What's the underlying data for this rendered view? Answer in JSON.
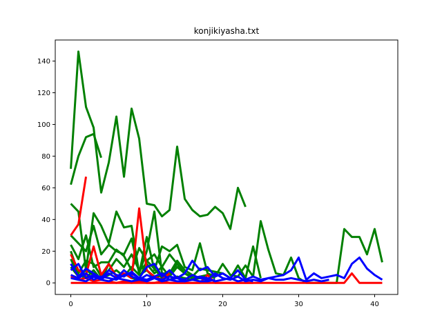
{
  "chart_data": {
    "type": "line",
    "title": "konjikiyasha.txt",
    "xlabel": "",
    "ylabel": "",
    "xlim": [
      -2.05,
      43.05
    ],
    "ylim": [
      -7.3,
      153.3
    ],
    "xticks": [
      0,
      10,
      20,
      30,
      40
    ],
    "yticks": [
      0,
      20,
      40,
      60,
      80,
      100,
      120,
      140
    ],
    "grid": false,
    "legend": false,
    "colors": {
      "green": "#008000",
      "red": "#ff0000",
      "blue": "#0000ff"
    },
    "series": [
      {
        "color": "green",
        "values": [
          72,
          146,
          111,
          98,
          57,
          76,
          105,
          67,
          110,
          91,
          50,
          49,
          42,
          46,
          86,
          53,
          46,
          42,
          43,
          48,
          44,
          34,
          60,
          48
        ]
      },
      {
        "color": "green",
        "values": [
          62,
          80,
          92,
          94,
          79
        ]
      },
      {
        "color": "green",
        "values": [
          50,
          45,
          8,
          44,
          36,
          25,
          45,
          35,
          36,
          6,
          29,
          8,
          23,
          20,
          24,
          10,
          8,
          25,
          6,
          4,
          12,
          5,
          4,
          11,
          4,
          39,
          21,
          6,
          5,
          16,
          3,
          0,
          0,
          0,
          0,
          0,
          34,
          29,
          29,
          18,
          34,
          13
        ]
      },
      {
        "color": "green",
        "values": [
          30,
          25,
          20,
          36,
          18,
          24,
          20,
          18,
          28,
          6,
          20,
          45,
          6,
          6,
          14,
          8,
          5
        ]
      },
      {
        "color": "green",
        "values": [
          24,
          15,
          30,
          10,
          13,
          13,
          21,
          17,
          8,
          22,
          14,
          18,
          10,
          18,
          12,
          6,
          4,
          9,
          8,
          7,
          6,
          3,
          11,
          3,
          23,
          3
        ]
      },
      {
        "color": "green",
        "values": [
          20,
          6,
          14,
          12,
          4,
          8,
          15,
          10,
          18,
          8,
          12,
          6,
          10,
          4,
          10,
          6,
          3,
          4,
          5,
          3
        ]
      },
      {
        "color": "green",
        "values": [
          10,
          4,
          8,
          5,
          3,
          5,
          8,
          4,
          10,
          5,
          8,
          3,
          5,
          2,
          4,
          3,
          2,
          3,
          2
        ]
      },
      {
        "color": "green",
        "values": [
          15,
          5,
          3,
          8,
          2,
          12,
          4,
          6,
          3,
          2,
          14,
          9,
          3,
          6,
          12
        ]
      },
      {
        "color": "red",
        "values": [
          30,
          37,
          67
        ]
      },
      {
        "color": "red",
        "values": [
          18,
          8,
          5,
          23,
          5,
          12,
          4,
          6,
          3,
          47,
          8,
          4,
          2,
          6
        ]
      },
      {
        "color": "red",
        "values": [
          4,
          2,
          3,
          1,
          2,
          1,
          0,
          1,
          0,
          1,
          0,
          0,
          1,
          0,
          0,
          0,
          0,
          0,
          5,
          0,
          0,
          0,
          0,
          0,
          0,
          0,
          0,
          0,
          0,
          0,
          0,
          0,
          0,
          0,
          0,
          0,
          0,
          6,
          0,
          0,
          0,
          0
        ]
      },
      {
        "color": "red",
        "values": [
          0,
          0,
          0,
          0,
          0,
          0,
          0,
          0,
          0,
          0,
          0,
          0,
          0,
          0,
          0,
          0,
          0,
          0,
          0,
          0,
          0,
          0,
          0,
          0,
          0
        ]
      },
      {
        "color": "blue",
        "values": [
          12,
          4,
          9,
          6,
          3,
          8,
          5,
          4,
          7,
          3,
          10,
          12,
          4,
          8,
          3,
          6,
          14,
          8,
          10,
          4,
          6,
          3,
          8,
          2,
          4,
          2,
          3,
          4,
          5,
          8,
          16,
          2,
          6,
          3,
          4,
          5,
          3,
          12,
          16,
          9,
          5,
          2
        ]
      },
      {
        "color": "blue",
        "values": [
          8,
          12,
          3,
          5,
          2,
          6,
          3,
          8,
          4,
          2,
          5,
          3,
          2,
          4,
          3,
          2,
          5,
          3,
          2,
          6,
          3,
          2,
          4,
          1,
          2,
          1,
          3,
          2,
          2,
          3,
          2,
          1,
          2,
          1,
          2
        ]
      },
      {
        "color": "blue",
        "values": [
          5,
          3,
          6,
          2,
          4,
          3,
          2,
          5,
          6,
          3,
          2,
          4,
          6,
          2,
          3,
          1,
          2,
          4,
          3,
          1,
          2,
          3,
          1,
          2,
          1
        ]
      },
      {
        "color": "blue",
        "values": [
          3,
          2,
          1,
          4,
          2,
          1,
          3,
          2,
          1,
          2,
          1,
          3,
          1,
          2,
          1,
          1,
          2,
          1,
          1,
          2
        ]
      }
    ]
  }
}
